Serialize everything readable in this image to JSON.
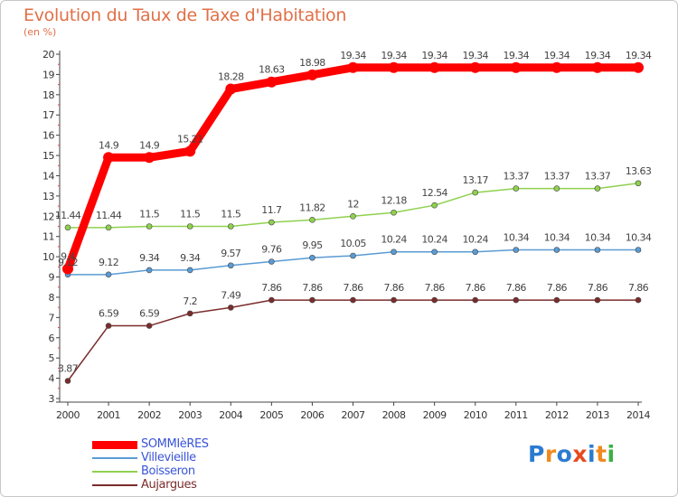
{
  "header": {
    "title": "Evolution du Taux de Taxe d'Habitation",
    "subtitle": "(en %)"
  },
  "logo": {
    "text": "Proxiti",
    "letters": [
      "P",
      "r",
      "o",
      "x",
      "i",
      "t",
      "i"
    ],
    "colors": [
      "#2b7bd0",
      "#f08a1e",
      "#2b7bd0",
      "#e84b1f",
      "#2b7bd0",
      "#f08a1e",
      "#3cb043"
    ]
  },
  "chart_data": {
    "type": "line",
    "title": "Evolution du Taux de Taxe d'Habitation",
    "ylabel": "(en %)",
    "xlabel": "",
    "ylim": [
      3,
      20
    ],
    "yticks": [
      3,
      4,
      5,
      6,
      7,
      8,
      9,
      10,
      11,
      12,
      13,
      14,
      15,
      16,
      17,
      18,
      19,
      20
    ],
    "categories": [
      "2000",
      "2001",
      "2002",
      "2003",
      "2004",
      "2005",
      "2006",
      "2007",
      "2008",
      "2009",
      "2010",
      "2011",
      "2012",
      "2013",
      "2014"
    ],
    "series": [
      {
        "name": "SOMMIèRES",
        "color": "#ff0000",
        "width": 9,
        "values": [
          9.4,
          14.9,
          14.9,
          15.21,
          18.28,
          18.63,
          18.98,
          19.34,
          19.34,
          19.34,
          19.34,
          19.34,
          19.34,
          19.34,
          19.34
        ],
        "labels": [
          "9.4",
          "14.9",
          "14.9",
          "15.21",
          "18.28",
          "18.63",
          "18.98",
          "19.34",
          "19.34",
          "19.34",
          "19.34",
          "19.34",
          "19.34",
          "19.34",
          "19.34"
        ]
      },
      {
        "name": "Villevieille",
        "color": "#5a9bd4",
        "width": 1.5,
        "values": [
          9.12,
          9.12,
          9.34,
          9.34,
          9.57,
          9.76,
          9.95,
          10.05,
          10.24,
          10.24,
          10.24,
          10.34,
          10.34,
          10.34,
          10.34
        ],
        "labels": [
          "9.12",
          "9.12",
          "9.34",
          "9.34",
          "9.57",
          "9.76",
          "9.95",
          "10.05",
          "10.24",
          "10.24",
          "10.24",
          "10.34",
          "10.34",
          "10.34",
          "10.34"
        ]
      },
      {
        "name": "Boisseron",
        "color": "#8fd14f",
        "width": 1.5,
        "values": [
          11.44,
          11.44,
          11.5,
          11.5,
          11.5,
          11.7,
          11.82,
          12,
          12.18,
          12.54,
          13.17,
          13.37,
          13.37,
          13.37,
          13.63
        ],
        "labels": [
          "11.44",
          "11.44",
          "11.5",
          "11.5",
          "11.5",
          "11.7",
          "11.82",
          "12",
          "12.18",
          "12.54",
          "13.17",
          "13.37",
          "13.37",
          "13.37",
          "13.63"
        ]
      },
      {
        "name": "Aujargues",
        "color": "#7b2c2c",
        "width": 1.5,
        "values": [
          3.87,
          6.59,
          6.59,
          7.2,
          7.49,
          7.86,
          7.86,
          7.86,
          7.86,
          7.86,
          7.86,
          7.86,
          7.86,
          7.86,
          7.86
        ],
        "labels": [
          "3.87",
          "6.59",
          "6.59",
          "7.2",
          "7.49",
          "7.86",
          "7.86",
          "7.86",
          "7.86",
          "7.86",
          "7.86",
          "7.86",
          "7.86",
          "7.86",
          "7.86"
        ]
      }
    ],
    "grid": false,
    "legend": "bottom-left"
  }
}
